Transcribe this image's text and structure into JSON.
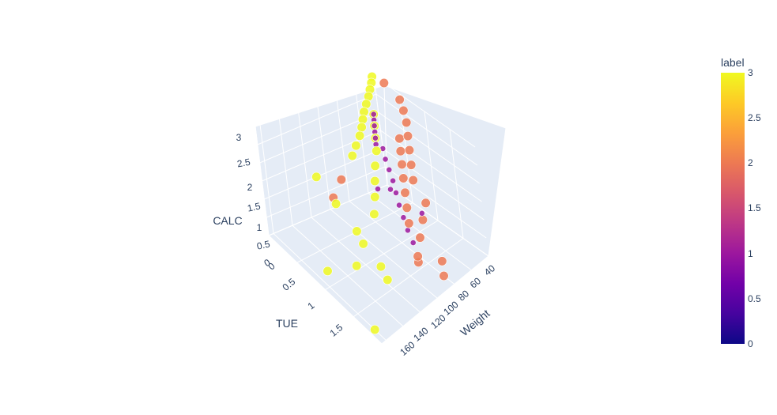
{
  "chart_data": {
    "type": "scatter3d",
    "axes": {
      "x": {
        "title": "Weight",
        "ticks": [
          "40",
          "60",
          "80",
          "100",
          "120",
          "140",
          "160"
        ]
      },
      "y": {
        "title": "TUE",
        "ticks": [
          "0",
          "0.5",
          "1",
          "1.5"
        ]
      },
      "z": {
        "title": "CALC",
        "ticks": [
          "0",
          "0.5",
          "1",
          "1.5",
          "2",
          "2.5",
          "3"
        ]
      }
    },
    "colorbar": {
      "title": "label",
      "ticks": [
        "0",
        "0.5",
        "1",
        "1.5",
        "2",
        "2.5",
        "3"
      ],
      "range": [
        0,
        3
      ],
      "colorscale": [
        "#0d0887",
        "#46039f",
        "#7201a8",
        "#9c179e",
        "#bd3786",
        "#d8576b",
        "#ed7953",
        "#fb9f3a",
        "#fdca26",
        "#f0f921"
      ]
    },
    "series": [
      {
        "label": 3,
        "color": "#f0f921",
        "points": [
          {
            "weight": 42,
            "tue": 0.0,
            "calc": 3
          },
          {
            "weight": 48,
            "tue": 0.1,
            "calc": 3
          },
          {
            "weight": 55,
            "tue": 0.2,
            "calc": 3
          },
          {
            "weight": 62,
            "tue": 0.3,
            "calc": 3
          },
          {
            "weight": 70,
            "tue": 0.4,
            "calc": 3
          },
          {
            "weight": 78,
            "tue": 0.5,
            "calc": 3
          },
          {
            "weight": 85,
            "tue": 0.6,
            "calc": 3
          },
          {
            "weight": 92,
            "tue": 0.7,
            "calc": 3
          },
          {
            "weight": 100,
            "tue": 0.8,
            "calc": 3
          },
          {
            "weight": 110,
            "tue": 0.9,
            "calc": 3
          },
          {
            "weight": 120,
            "tue": 1.0,
            "calc": 3
          },
          {
            "weight": 45,
            "tue": 0.0,
            "calc": 2
          },
          {
            "weight": 55,
            "tue": 0.2,
            "calc": 2
          },
          {
            "weight": 65,
            "tue": 0.4,
            "calc": 2
          },
          {
            "weight": 75,
            "tue": 0.6,
            "calc": 2
          },
          {
            "weight": 88,
            "tue": 0.8,
            "calc": 2
          },
          {
            "weight": 100,
            "tue": 1.0,
            "calc": 2
          },
          {
            "weight": 112,
            "tue": 1.2,
            "calc": 2
          },
          {
            "weight": 125,
            "tue": 1.4,
            "calc": 2
          },
          {
            "weight": 110,
            "tue": 0.0,
            "calc": 1
          },
          {
            "weight": 118,
            "tue": 0.5,
            "calc": 1
          },
          {
            "weight": 125,
            "tue": 1.0,
            "calc": 1
          },
          {
            "weight": 130,
            "tue": 1.2,
            "calc": 1
          },
          {
            "weight": 135,
            "tue": 1.6,
            "calc": 1
          },
          {
            "weight": 140,
            "tue": 1.8,
            "calc": 1
          },
          {
            "weight": 150,
            "tue": 1.4,
            "calc": 1
          },
          {
            "weight": 160,
            "tue": 1.8,
            "calc": 0
          },
          {
            "weight": 150,
            "tue": 0.8,
            "calc": 0
          }
        ]
      },
      {
        "label": 2,
        "color": "#ed7953",
        "points": [
          {
            "weight": 40,
            "tue": 0.2,
            "calc": 3
          },
          {
            "weight": 45,
            "tue": 0.6,
            "calc": 3
          },
          {
            "weight": 52,
            "tue": 0.8,
            "calc": 3
          },
          {
            "weight": 60,
            "tue": 1.0,
            "calc": 3
          },
          {
            "weight": 70,
            "tue": 1.2,
            "calc": 3
          },
          {
            "weight": 80,
            "tue": 1.4,
            "calc": 3
          },
          {
            "weight": 90,
            "tue": 1.6,
            "calc": 3
          },
          {
            "weight": 100,
            "tue": 1.8,
            "calc": 3
          },
          {
            "weight": 50,
            "tue": 0.6,
            "calc": 2
          },
          {
            "weight": 60,
            "tue": 0.8,
            "calc": 2
          },
          {
            "weight": 70,
            "tue": 1.0,
            "calc": 2
          },
          {
            "weight": 80,
            "tue": 1.2,
            "calc": 2
          },
          {
            "weight": 90,
            "tue": 1.4,
            "calc": 2
          },
          {
            "weight": 100,
            "tue": 1.6,
            "calc": 2
          },
          {
            "weight": 110,
            "tue": 1.8,
            "calc": 2
          },
          {
            "weight": 60,
            "tue": 1.2,
            "calc": 1
          },
          {
            "weight": 75,
            "tue": 1.4,
            "calc": 1
          },
          {
            "weight": 90,
            "tue": 1.6,
            "calc": 1
          },
          {
            "weight": 105,
            "tue": 1.8,
            "calc": 1
          },
          {
            "weight": 95,
            "tue": 0.2,
            "calc": 1
          },
          {
            "weight": 115,
            "tue": 0.4,
            "calc": 1
          },
          {
            "weight": 70,
            "tue": 1.6,
            "calc": 0
          },
          {
            "weight": 80,
            "tue": 1.8,
            "calc": 0
          },
          {
            "weight": 85,
            "tue": 1.4,
            "calc": 0
          }
        ]
      },
      {
        "label": 1,
        "color": "#9c179e",
        "points": [
          {
            "weight": 45,
            "tue": 0.0,
            "calc": 2
          },
          {
            "weight": 50,
            "tue": 0.1,
            "calc": 2
          },
          {
            "weight": 55,
            "tue": 0.2,
            "calc": 2
          },
          {
            "weight": 60,
            "tue": 0.3,
            "calc": 2
          },
          {
            "weight": 65,
            "tue": 0.4,
            "calc": 2
          },
          {
            "weight": 70,
            "tue": 0.5,
            "calc": 2
          },
          {
            "weight": 48,
            "tue": 0.2,
            "calc": 1
          },
          {
            "weight": 55,
            "tue": 0.4,
            "calc": 1
          },
          {
            "weight": 62,
            "tue": 0.6,
            "calc": 1
          },
          {
            "weight": 70,
            "tue": 0.8,
            "calc": 1
          },
          {
            "weight": 78,
            "tue": 1.0,
            "calc": 1
          },
          {
            "weight": 85,
            "tue": 1.2,
            "calc": 1
          },
          {
            "weight": 92,
            "tue": 1.4,
            "calc": 1
          },
          {
            "weight": 98,
            "tue": 1.6,
            "calc": 1
          },
          {
            "weight": 40,
            "tue": 0.0,
            "calc": 1
          },
          {
            "weight": 42,
            "tue": 0.1,
            "calc": 0
          },
          {
            "weight": 50,
            "tue": 0.0,
            "calc": 0
          },
          {
            "weight": 95,
            "tue": 1.8,
            "calc": 2
          }
        ]
      }
    ]
  }
}
